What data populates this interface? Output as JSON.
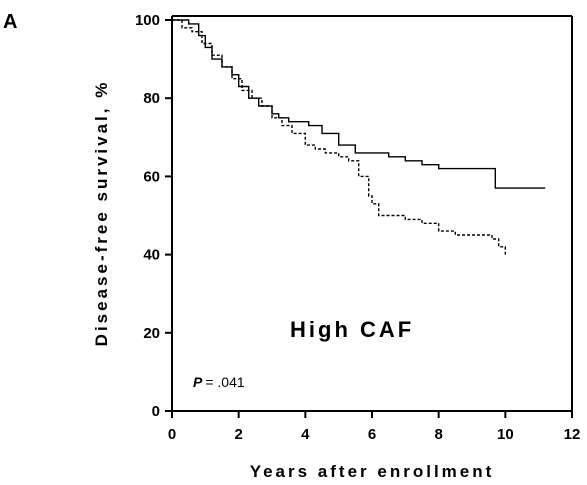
{
  "chart_data": {
    "type": "line",
    "panel_label": "A",
    "xlabel": "Years after enrollment",
    "ylabel": "Disease-free survival, %",
    "xlim": [
      0,
      12
    ],
    "ylim": [
      0,
      100
    ],
    "x_ticks": [
      "0",
      "2",
      "4",
      "6",
      "8",
      "10",
      "12"
    ],
    "y_ticks": [
      "0",
      "20",
      "40",
      "60",
      "80",
      "100"
    ],
    "grid": false,
    "annotations": {
      "group": "High CAF",
      "p_label": "P",
      "p_value": "= .041"
    },
    "series": [
      {
        "line_style": "solid",
        "x": [
          0,
          0.5,
          0.8,
          1.0,
          1.2,
          1.5,
          1.8,
          2.0,
          2.3,
          2.6,
          3.0,
          3.2,
          3.5,
          4.0,
          4.1,
          4.5,
          5.0,
          5.5,
          6.0,
          6.5,
          7.0,
          7.5,
          8.0,
          8.5,
          9.0,
          9.6,
          9.7,
          11.2
        ],
        "y": [
          100,
          99,
          96,
          93,
          90,
          88,
          86,
          83,
          80,
          78,
          76,
          75,
          74,
          74,
          73,
          71,
          68,
          66,
          66,
          65,
          64,
          63,
          62,
          62,
          62,
          62,
          57,
          57
        ]
      },
      {
        "line_style": "dashed",
        "x": [
          0,
          0.3,
          0.6,
          0.9,
          1.2,
          1.5,
          1.8,
          2.1,
          2.4,
          2.7,
          3.0,
          3.3,
          3.6,
          4.0,
          4.3,
          4.6,
          5.0,
          5.3,
          5.6,
          5.9,
          6.0,
          6.2,
          6.5,
          7.0,
          7.5,
          8.0,
          8.5,
          9.0,
          9.3,
          9.6,
          9.8,
          10.0
        ],
        "y": [
          100,
          98,
          97,
          94,
          91,
          88,
          85,
          82,
          80,
          78,
          75,
          73,
          71,
          68,
          67,
          66,
          65,
          64,
          60,
          55,
          53,
          50,
          50,
          49,
          48,
          46,
          45,
          45,
          45,
          44,
          42,
          40
        ]
      }
    ]
  }
}
